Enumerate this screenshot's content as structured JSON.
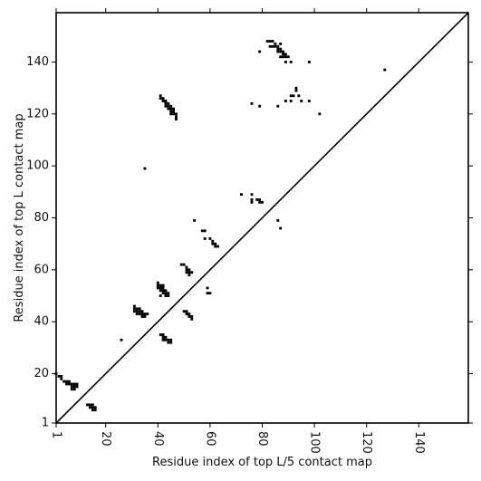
{
  "chart_data": {
    "type": "scatter",
    "xlabel": "Residue index of top L/5 contact map",
    "ylabel": "Residue index of top L contact map",
    "xlim": [
      1,
      159
    ],
    "ylim": [
      1,
      159
    ],
    "xticks": [
      1,
      20,
      40,
      60,
      80,
      100,
      120,
      140
    ],
    "yticks": [
      1,
      20,
      40,
      60,
      80,
      100,
      120,
      140
    ],
    "diagonal": true,
    "marker_color": "#000000",
    "x_tick_label_rotation": "vertical",
    "points": [
      [
        1,
        20
      ],
      [
        2,
        19
      ],
      [
        3,
        19
      ],
      [
        3,
        18
      ],
      [
        4,
        17
      ],
      [
        5,
        17
      ],
      [
        5,
        16
      ],
      [
        6,
        17
      ],
      [
        6,
        16
      ],
      [
        7,
        16
      ],
      [
        7,
        15
      ],
      [
        7,
        14
      ],
      [
        8,
        15
      ],
      [
        8,
        16
      ],
      [
        9,
        16
      ],
      [
        9,
        15
      ],
      [
        8,
        14
      ],
      [
        13,
        8
      ],
      [
        14,
        7
      ],
      [
        14,
        8
      ],
      [
        15,
        7
      ],
      [
        15,
        8
      ],
      [
        16,
        7
      ],
      [
        16,
        6
      ],
      [
        15,
        6
      ],
      [
        26,
        33
      ],
      [
        31,
        46
      ],
      [
        31,
        45
      ],
      [
        31,
        44
      ],
      [
        32,
        45
      ],
      [
        32,
        44
      ],
      [
        32,
        43
      ],
      [
        33,
        45
      ],
      [
        33,
        44
      ],
      [
        33,
        43
      ],
      [
        34,
        44
      ],
      [
        34,
        43
      ],
      [
        34,
        42
      ],
      [
        35,
        43
      ],
      [
        35,
        42
      ],
      [
        36,
        43
      ],
      [
        40,
        55
      ],
      [
        40,
        54
      ],
      [
        40,
        53
      ],
      [
        41,
        54
      ],
      [
        41,
        53
      ],
      [
        41,
        52
      ],
      [
        41,
        50
      ],
      [
        42,
        54
      ],
      [
        42,
        53
      ],
      [
        42,
        52
      ],
      [
        42,
        51
      ],
      [
        43,
        52
      ],
      [
        43,
        51
      ],
      [
        43,
        50
      ],
      [
        44,
        51
      ],
      [
        44,
        50
      ],
      [
        41,
        35
      ],
      [
        42,
        34
      ],
      [
        42,
        35
      ],
      [
        42,
        33
      ],
      [
        43,
        33
      ],
      [
        43,
        34
      ],
      [
        44,
        32
      ],
      [
        44,
        33
      ],
      [
        45,
        33
      ],
      [
        45,
        32
      ],
      [
        41,
        127
      ],
      [
        41,
        126
      ],
      [
        42,
        126
      ],
      [
        42,
        125
      ],
      [
        43,
        125
      ],
      [
        43,
        124
      ],
      [
        43,
        123
      ],
      [
        44,
        124
      ],
      [
        44,
        123
      ],
      [
        44,
        122
      ],
      [
        45,
        123
      ],
      [
        45,
        122
      ],
      [
        45,
        121
      ],
      [
        45,
        120
      ],
      [
        46,
        122
      ],
      [
        46,
        121
      ],
      [
        46,
        120
      ],
      [
        47,
        120
      ],
      [
        47,
        119
      ],
      [
        47,
        118
      ],
      [
        35,
        99
      ],
      [
        49,
        62
      ],
      [
        50,
        62
      ],
      [
        51,
        61
      ],
      [
        51,
        60
      ],
      [
        51,
        59
      ],
      [
        52,
        60
      ],
      [
        52,
        59
      ],
      [
        52,
        58
      ],
      [
        53,
        59
      ],
      [
        50,
        44
      ],
      [
        51,
        44
      ],
      [
        51,
        43
      ],
      [
        52,
        43
      ],
      [
        52,
        42
      ],
      [
        53,
        42
      ],
      [
        53,
        41
      ],
      [
        54,
        79
      ],
      [
        57,
        75
      ],
      [
        58,
        75
      ],
      [
        58,
        72
      ],
      [
        59,
        53
      ],
      [
        59,
        51
      ],
      [
        60,
        51
      ],
      [
        60,
        72
      ],
      [
        61,
        71
      ],
      [
        61,
        70
      ],
      [
        62,
        70
      ],
      [
        62,
        69
      ],
      [
        63,
        69
      ],
      [
        72,
        89
      ],
      [
        76,
        89
      ],
      [
        76,
        87
      ],
      [
        76,
        86
      ],
      [
        78,
        87
      ],
      [
        79,
        86
      ],
      [
        79,
        87
      ],
      [
        80,
        86
      ],
      [
        86,
        79
      ],
      [
        87,
        76
      ],
      [
        76,
        124
      ],
      [
        79,
        123
      ],
      [
        86,
        123
      ],
      [
        89,
        125
      ],
      [
        91,
        125
      ],
      [
        91,
        127
      ],
      [
        92,
        127
      ],
      [
        93,
        130
      ],
      [
        93,
        129
      ],
      [
        94,
        127
      ],
      [
        95,
        125
      ],
      [
        98,
        125
      ],
      [
        102,
        120
      ],
      [
        79,
        144
      ],
      [
        82,
        148
      ],
      [
        83,
        148
      ],
      [
        84,
        148
      ],
      [
        83,
        146
      ],
      [
        84,
        146
      ],
      [
        85,
        147
      ],
      [
        85,
        146
      ],
      [
        86,
        146
      ],
      [
        86,
        145
      ],
      [
        87,
        145
      ],
      [
        87,
        144
      ],
      [
        86,
        144
      ],
      [
        87,
        147
      ],
      [
        88,
        144
      ],
      [
        88,
        143
      ],
      [
        87,
        142
      ],
      [
        88,
        142
      ],
      [
        89,
        142
      ],
      [
        89,
        143
      ],
      [
        89,
        140
      ],
      [
        90,
        142
      ],
      [
        91,
        140
      ],
      [
        98,
        140
      ],
      [
        127,
        137
      ]
    ]
  }
}
